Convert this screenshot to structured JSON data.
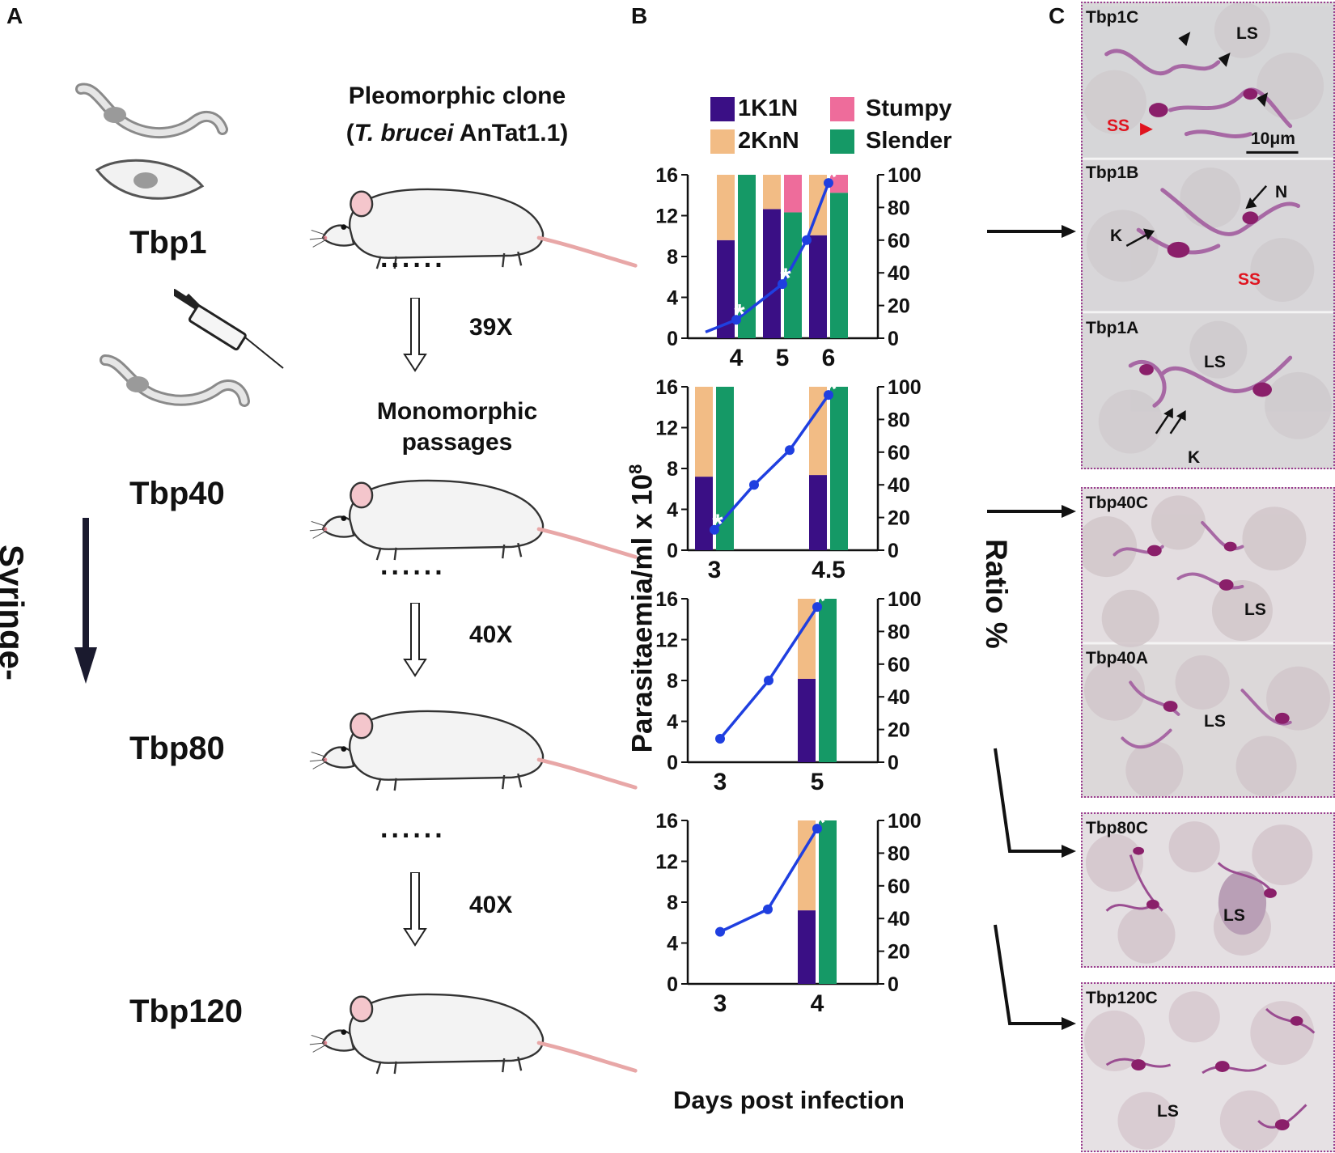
{
  "panels": {
    "a": "A",
    "b": "B",
    "c": "C"
  },
  "panel_a": {
    "pleomorphic_line1": "Pleomorphic clone",
    "pleomorphic_paren_open": "(",
    "pleomorphic_species": "T. brucei",
    "pleomorphic_strain": " AnTat1.1)",
    "monomorphic_line1": "Monomorphic",
    "monomorphic_line2": "passages",
    "dots": "......",
    "passages": [
      "39X",
      "40X",
      "40X"
    ],
    "stages": [
      "Tbp1",
      "Tbp40",
      "Tbp80",
      "Tbp120"
    ],
    "vertical_label": "Syringe-passaging"
  },
  "panel_b": {
    "legend": [
      {
        "label": "1K1N",
        "color": "#3a0f85"
      },
      {
        "label": "2KnN",
        "color": "#f2bc85"
      },
      {
        "label": "Stumpy",
        "color": "#ee6c9b"
      },
      {
        "label": "Slender",
        "color": "#159966"
      }
    ],
    "y_left_label": "Parasitaemia/ml x 10",
    "y_left_exp": "8",
    "y_right_label": "Ratio %",
    "x_label": "Days post infection",
    "star": "*"
  },
  "chart_data": [
    {
      "type": "bar+line",
      "name": "Tbp1",
      "x_ticks": [
        "4",
        "5",
        "6"
      ],
      "left_axis": {
        "label": "Parasitaemia/ml x 10^8",
        "ylim": [
          0,
          16
        ],
        "ticks": [
          0,
          4,
          8,
          12,
          16
        ]
      },
      "right_axis": {
        "label": "Ratio %",
        "ylim": [
          0,
          100
        ],
        "ticks": [
          0,
          20,
          40,
          60,
          80,
          100
        ]
      },
      "bars": [
        {
          "day": 4,
          "stacked": {
            "1K1N": 60,
            "2KnN": 40
          },
          "slender_stumpy": {
            "Slender": 100,
            "Stumpy": 0
          }
        },
        {
          "day": 5,
          "stacked": {
            "1K1N": 79,
            "2KnN": 21
          },
          "slender_stumpy": {
            "Slender": 77,
            "Stumpy": 23
          }
        },
        {
          "day": 6,
          "stacked": {
            "1K1N": 63,
            "2KnN": 37
          },
          "slender_stumpy": {
            "Slender": 89,
            "Stumpy": 11
          }
        }
      ],
      "parasitaemia": {
        "x": [
          3.5,
          4,
          5,
          5.5,
          6
        ],
        "y": [
          0.6,
          1.8,
          5.3,
          9.6,
          15.2
        ]
      },
      "stars_at_days": [
        4,
        5,
        6
      ]
    },
    {
      "type": "bar+line",
      "name": "Tbp40",
      "x_ticks": [
        "3",
        "4.5"
      ],
      "left_axis": {
        "label": "Parasitaemia/ml x 10^8",
        "ylim": [
          0,
          16
        ],
        "ticks": [
          0,
          4,
          8,
          12,
          16
        ]
      },
      "right_axis": {
        "label": "Ratio %",
        "ylim": [
          0,
          100
        ],
        "ticks": [
          0,
          20,
          40,
          60,
          80,
          100
        ]
      },
      "bars": [
        {
          "day": 3,
          "stacked": {
            "1K1N": 45,
            "2KnN": 55
          },
          "slender_stumpy": {
            "Slender": 100,
            "Stumpy": 0
          }
        },
        {
          "day": 4.5,
          "stacked": {
            "1K1N": 46,
            "2KnN": 54
          },
          "slender_stumpy": {
            "Slender": 100,
            "Stumpy": 0
          }
        }
      ],
      "parasitaemia": {
        "x": [
          3,
          3.5,
          4,
          4.5
        ],
        "y": [
          2.0,
          6.4,
          9.8,
          15.2
        ]
      },
      "stars_at_days": [
        3,
        4.5
      ]
    },
    {
      "type": "bar+line",
      "name": "Tbp80",
      "x_ticks": [
        "3",
        "5"
      ],
      "left_axis": {
        "label": "Parasitaemia/ml x 10^8",
        "ylim": [
          0,
          16
        ],
        "ticks": [
          0,
          4,
          8,
          12,
          16
        ]
      },
      "right_axis": {
        "label": "Ratio %",
        "ylim": [
          0,
          100
        ],
        "ticks": [
          0,
          20,
          40,
          60,
          80,
          100
        ]
      },
      "bars": [
        {
          "day": 5,
          "stacked": {
            "1K1N": 51,
            "2KnN": 49
          },
          "slender_stumpy": {
            "Slender": 100,
            "Stumpy": 0
          }
        }
      ],
      "parasitaemia": {
        "x": [
          3,
          4,
          5
        ],
        "y": [
          2.3,
          8.0,
          15.2
        ]
      },
      "stars_at_days": [
        5
      ]
    },
    {
      "type": "bar+line",
      "name": "Tbp120",
      "x_ticks": [
        "3",
        "4"
      ],
      "left_axis": {
        "label": "Parasitaemia/ml x 10^8",
        "ylim": [
          0,
          16
        ],
        "ticks": [
          0,
          4,
          8,
          12,
          16
        ]
      },
      "right_axis": {
        "label": "Ratio %",
        "ylim": [
          0,
          100
        ],
        "ticks": [
          0,
          20,
          40,
          60,
          80,
          100
        ]
      },
      "bars": [
        {
          "day": 4,
          "stacked": {
            "1K1N": 45,
            "2KnN": 55
          },
          "slender_stumpy": {
            "Slender": 100,
            "Stumpy": 0
          }
        }
      ],
      "parasitaemia": {
        "x": [
          3,
          3.5,
          4
        ],
        "y": [
          5.1,
          7.3,
          15.2
        ]
      },
      "stars_at_days": [
        4
      ]
    }
  ],
  "panel_c": {
    "images": [
      {
        "label": "Tbp1C",
        "annotations": [
          "LS",
          "SS"
        ],
        "scale": "10μm"
      },
      {
        "label": "Tbp1B",
        "annotations": [
          "K",
          "N",
          "SS"
        ]
      },
      {
        "label": "Tbp1A",
        "annotations": [
          "LS",
          "K"
        ]
      },
      {
        "label": "Tbp40C",
        "annotations": [
          "LS"
        ]
      },
      {
        "label": "Tbp40A",
        "annotations": [
          "LS"
        ]
      },
      {
        "label": "Tbp80C",
        "annotations": [
          "LS"
        ]
      },
      {
        "label": "Tbp120C",
        "annotations": [
          "LS"
        ]
      }
    ]
  }
}
